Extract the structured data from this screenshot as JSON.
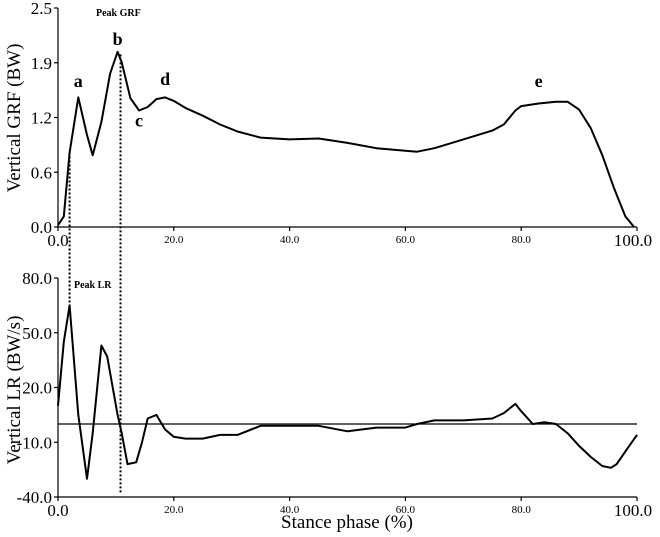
{
  "chart_data": [
    {
      "type": "line",
      "ylabel": "Vertical GRF (BW)",
      "xlim": [
        0,
        100
      ],
      "ylim": [
        0,
        2.5
      ],
      "xticks": [
        "0.0",
        "20.0",
        "40.0",
        "60.0",
        "80.0",
        "100.0"
      ],
      "yticks": [
        "0.0",
        "0.6",
        "1.2",
        "1.9",
        "2.5"
      ],
      "annotations": {
        "peak_grf": "Peak  GRF",
        "points": [
          {
            "label": "a",
            "x": 3.5,
            "y": 1.6
          },
          {
            "label": "b",
            "x": 10.3,
            "y": 2.08
          },
          {
            "label": "c",
            "x": 14.0,
            "y": 1.15
          },
          {
            "label": "d",
            "x": 18.5,
            "y": 1.62
          },
          {
            "label": "e",
            "x": 83.0,
            "y": 1.6
          }
        ]
      },
      "series": [
        {
          "x": [
            0,
            1,
            2,
            3.5,
            5,
            6,
            7.5,
            9,
            10.3,
            11,
            12.5,
            14,
            15.5,
            17,
            18.5,
            20,
            22,
            25,
            28,
            31,
            35,
            40,
            45,
            50,
            55,
            60,
            62,
            65,
            70,
            75,
            77,
            79,
            80,
            83,
            86,
            88,
            90,
            92,
            94,
            96,
            98,
            99.5
          ],
          "y": [
            0.02,
            0.12,
            0.85,
            1.48,
            1.05,
            0.82,
            1.2,
            1.75,
            2.0,
            1.88,
            1.47,
            1.33,
            1.37,
            1.46,
            1.48,
            1.44,
            1.36,
            1.27,
            1.17,
            1.09,
            1.02,
            1.0,
            1.01,
            0.96,
            0.9,
            0.87,
            0.86,
            0.9,
            1.0,
            1.1,
            1.17,
            1.33,
            1.38,
            1.41,
            1.43,
            1.43,
            1.34,
            1.13,
            0.82,
            0.45,
            0.12,
            0.0
          ]
        }
      ]
    },
    {
      "type": "line",
      "ylabel": "Vertical  LR (BW/s)",
      "xlabel": "Stance phase (%)",
      "xlim": [
        0,
        100
      ],
      "ylim": [
        -40,
        80
      ],
      "xticks": [
        "0.0",
        "20.0",
        "40.0",
        "60.0",
        "80.0",
        "100.0"
      ],
      "yticks": [
        "-40.0",
        "-10.0",
        "20.0",
        "50.0",
        "80.0"
      ],
      "reference_y": 0,
      "annotations": {
        "peak_lr": "Peak  LR"
      },
      "series": [
        {
          "x": [
            0,
            1,
            2,
            3.5,
            5,
            6,
            7.5,
            8.5,
            10.3,
            11,
            12,
            13.5,
            14.5,
            15.5,
            17,
            18.5,
            20,
            22,
            25,
            28,
            31,
            35,
            40,
            45,
            50,
            55,
            60,
            62,
            65,
            70,
            75,
            77,
            79,
            80,
            82,
            84,
            86,
            88,
            90,
            92,
            94,
            95.5,
            96.5,
            98,
            100
          ],
          "y": [
            10,
            45,
            65,
            5,
            -30,
            -5,
            43,
            37,
            5,
            -5,
            -22,
            -21,
            -10,
            3,
            5,
            -3,
            -7,
            -8,
            -8,
            -6,
            -6,
            -1,
            -1,
            -1,
            -4,
            -2,
            -2,
            0,
            2,
            2,
            3,
            6,
            11,
            7,
            0,
            1,
            0,
            -5,
            -12,
            -18,
            -23,
            -24,
            -22,
            -15,
            -6
          ]
        }
      ]
    }
  ]
}
